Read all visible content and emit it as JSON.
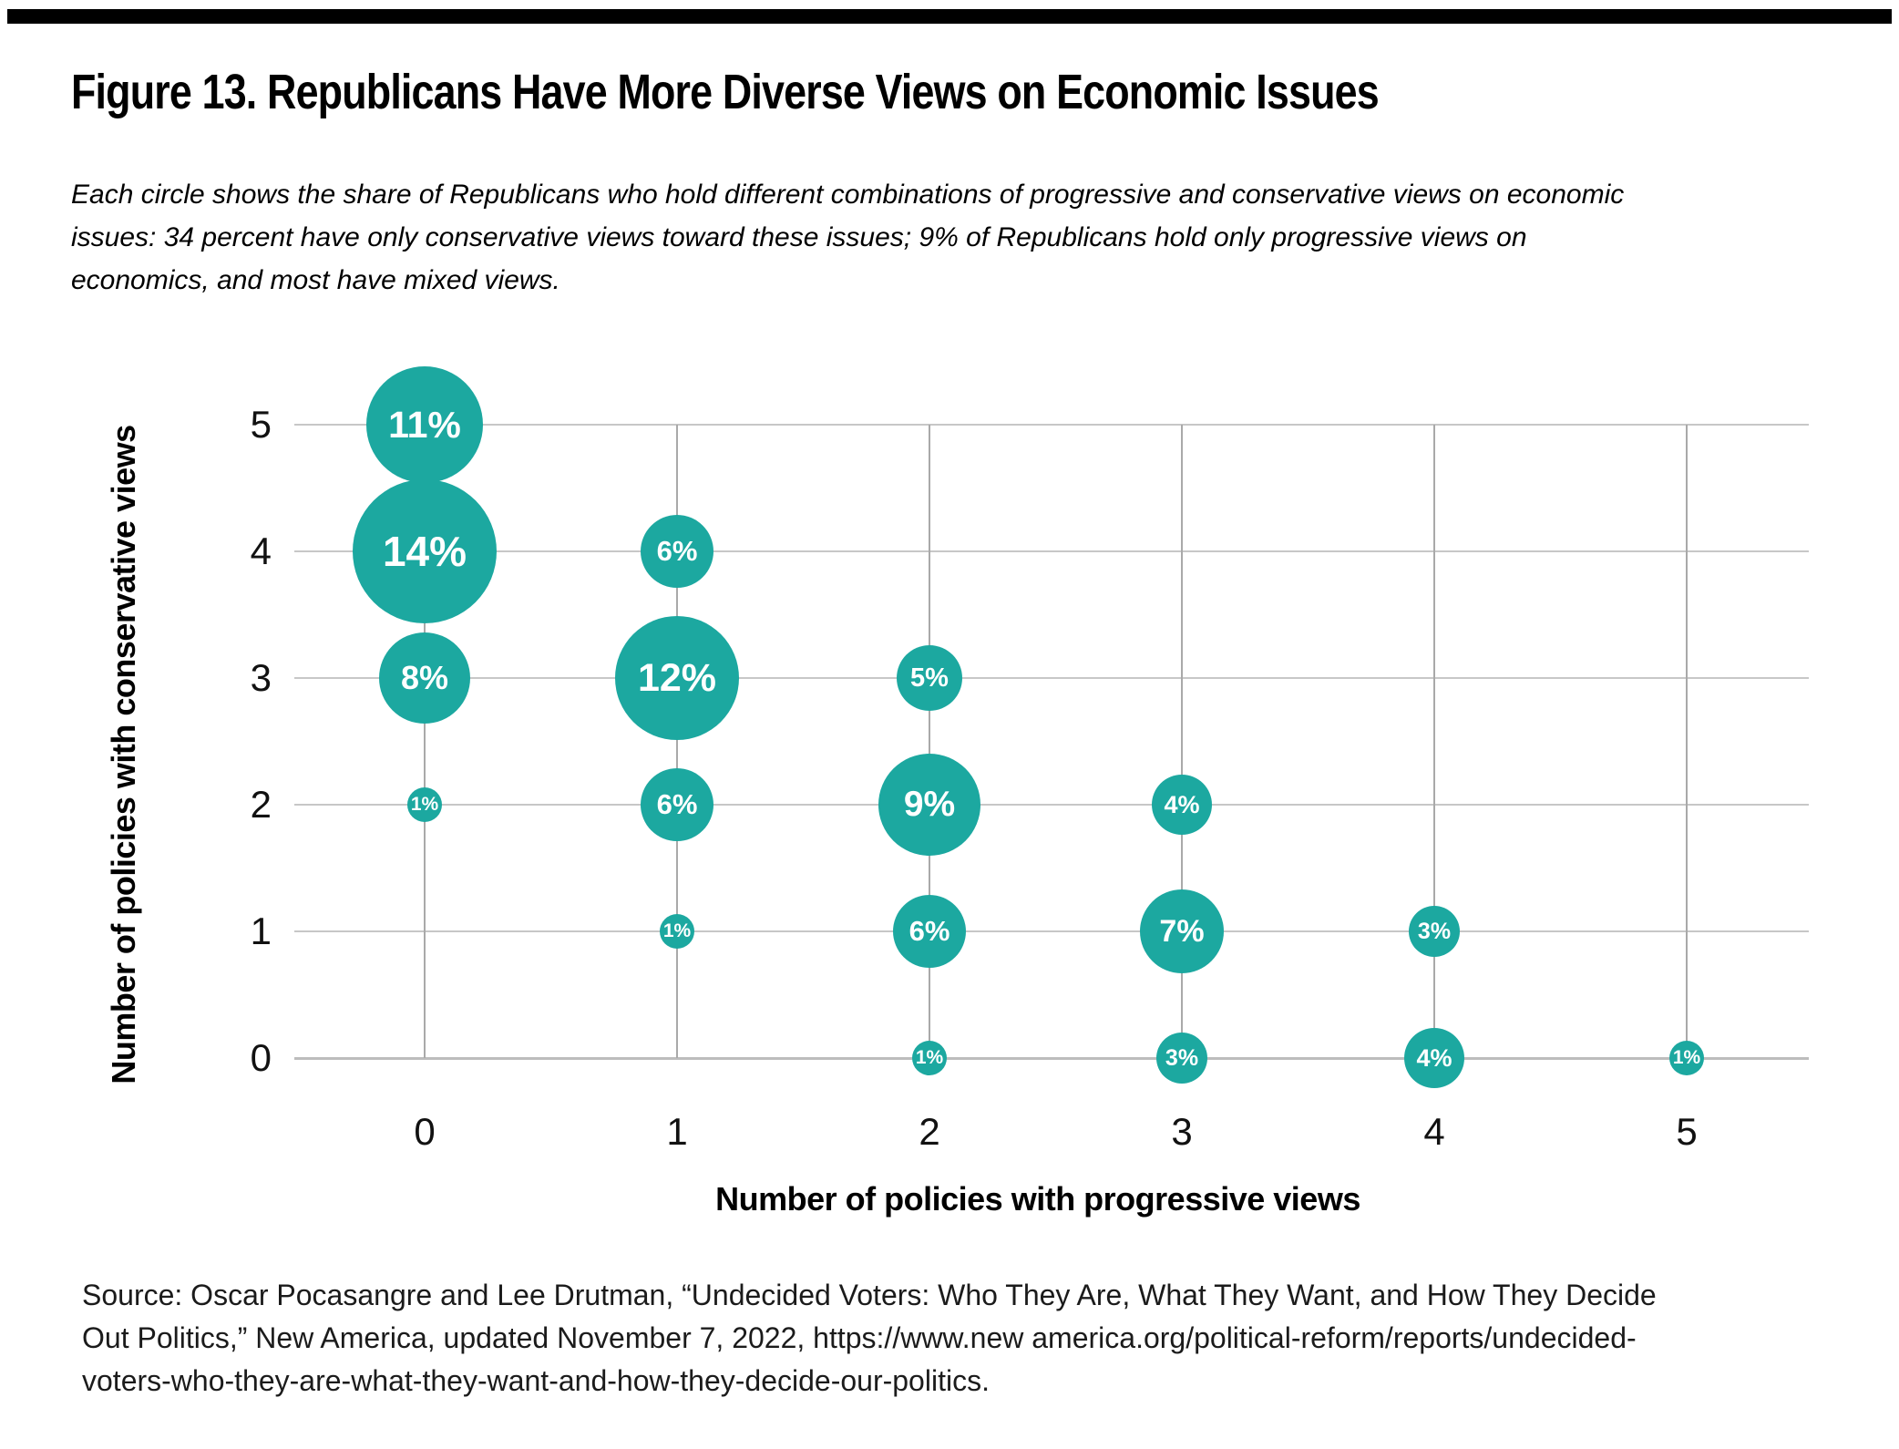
{
  "top_bar": {
    "color": "#000000"
  },
  "figure": {
    "title": "Figure 13. Republicans Have More Diverse Views on Economic Issues",
    "subtitle": "Each circle shows the share of Republicans who hold different combinations of progressive and conservative views on economic\nissues: 34 percent have only conservative views toward these issues; 9% of Republicans hold only progressive views on\neconomics, and most have mixed views."
  },
  "chart_data": {
    "type": "scatter",
    "subtype": "bubble",
    "xlabel": "Number of policies with progressive views",
    "ylabel": "Number of policies with conservative views",
    "x_ticks": [
      0,
      1,
      2,
      3,
      4,
      5
    ],
    "y_ticks": [
      0,
      1,
      2,
      3,
      4,
      5
    ],
    "xlim": [
      0,
      5
    ],
    "ylim": [
      0,
      5
    ],
    "grid": true,
    "bubble_color": "#1ca8a0",
    "label_color": "#ffffff",
    "points": [
      {
        "x": 0,
        "y": 5,
        "value": 11,
        "label": "11%"
      },
      {
        "x": 0,
        "y": 4,
        "value": 14,
        "label": "14%"
      },
      {
        "x": 0,
        "y": 3,
        "value": 8,
        "label": "8%"
      },
      {
        "x": 0,
        "y": 2,
        "value": 1,
        "label": "1%"
      },
      {
        "x": 1,
        "y": 4,
        "value": 6,
        "label": "6%"
      },
      {
        "x": 1,
        "y": 3,
        "value": 12,
        "label": "12%"
      },
      {
        "x": 1,
        "y": 2,
        "value": 6,
        "label": "6%"
      },
      {
        "x": 1,
        "y": 1,
        "value": 1,
        "label": "1%"
      },
      {
        "x": 2,
        "y": 3,
        "value": 5,
        "label": "5%"
      },
      {
        "x": 2,
        "y": 2,
        "value": 9,
        "label": "9%"
      },
      {
        "x": 2,
        "y": 1,
        "value": 6,
        "label": "6%"
      },
      {
        "x": 2,
        "y": 0,
        "value": 1,
        "label": "1%"
      },
      {
        "x": 3,
        "y": 2,
        "value": 4,
        "label": "4%"
      },
      {
        "x": 3,
        "y": 1,
        "value": 7,
        "label": "7%"
      },
      {
        "x": 3,
        "y": 0,
        "value": 3,
        "label": "3%"
      },
      {
        "x": 4,
        "y": 1,
        "value": 3,
        "label": "3%"
      },
      {
        "x": 4,
        "y": 0,
        "value": 4,
        "label": "4%"
      },
      {
        "x": 5,
        "y": 0,
        "value": 1,
        "label": "1%"
      }
    ]
  },
  "source": {
    "text": "Source: Oscar Pocasangre and Lee Drutman, “Undecided Voters: Who They Are, What They Want, and How They Decide\nOut Politics,” New America, updated November 7, 2022, https://www.new america.org/political-reform/reports/undecided-\nvoters-who-they-are-what-they-want-and-how-they-decide-our-politics."
  }
}
